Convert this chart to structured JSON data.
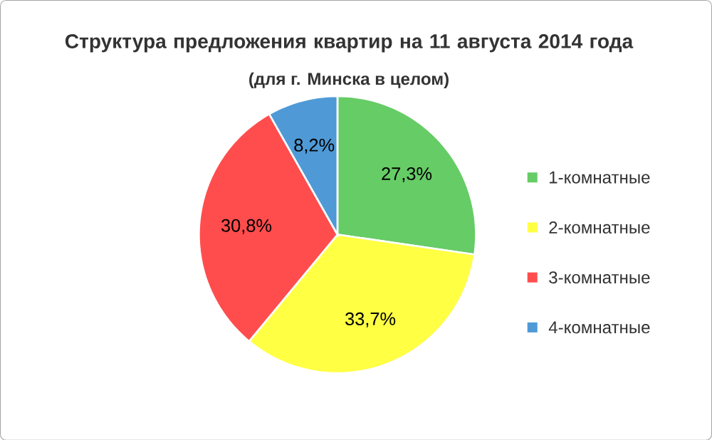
{
  "chart_data": {
    "type": "pie",
    "title": "Структура предложения квартир на 11 августа 2014 года",
    "subtitle": "(для г. Минска в целом)",
    "categories": [
      "1-комнатные",
      "2-комнатные",
      "3-комнатные",
      "4-комнатные"
    ],
    "values": [
      27.3,
      33.7,
      30.8,
      8.2
    ],
    "value_labels": [
      "27,3%",
      "33,7%",
      "30,8%",
      "8,2%"
    ],
    "colors": [
      "#66cc66",
      "#ffff44",
      "#ff4d4d",
      "#4f9ad6"
    ],
    "legend": "right"
  }
}
